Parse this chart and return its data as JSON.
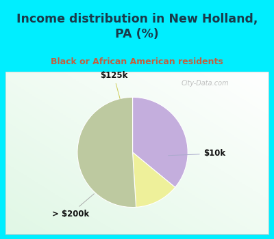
{
  "title": "Income distribution in New Holland,\nPA (%)",
  "subtitle": "Black or African American residents",
  "slices": [
    {
      "label": "$10k",
      "value": 36,
      "color": "#c4aedd"
    },
    {
      "label": "$125k",
      "value": 13,
      "color": "#eef09a"
    },
    {
      "label": "> $200k",
      "value": 51,
      "color": "#bdc9a0"
    }
  ],
  "bg_color": "#00eeff",
  "title_color": "#1a3a4a",
  "subtitle_color": "#c06040",
  "watermark": "City-Data.com",
  "label_color": "#111111",
  "startangle": 90
}
